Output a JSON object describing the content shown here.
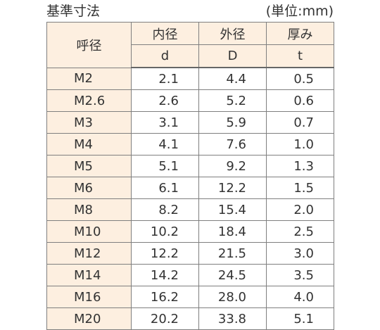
{
  "title": "基準寸法",
  "unit_note": "(単位:mm)",
  "headers": {
    "nominal": "呼径",
    "inner_label": "内径",
    "outer_label": "外径",
    "thickness_label": "厚み",
    "inner_symbol": "d",
    "outer_symbol": "D",
    "thickness_symbol": "t"
  },
  "rows": [
    {
      "size": "M2",
      "d": "2.1",
      "D": "4.4",
      "t": "0.5"
    },
    {
      "size": "M2.6",
      "d": "2.6",
      "D": "5.2",
      "t": "0.6"
    },
    {
      "size": "M3",
      "d": "3.1",
      "D": "5.9",
      "t": "0.7"
    },
    {
      "size": "M4",
      "d": "4.1",
      "D": "7.6",
      "t": "1.0"
    },
    {
      "size": "M5",
      "d": "5.1",
      "D": "9.2",
      "t": "1.3"
    },
    {
      "size": "M6",
      "d": "6.1",
      "D": "12.2",
      "t": "1.5"
    },
    {
      "size": "M8",
      "d": "8.2",
      "D": "15.4",
      "t": "2.0"
    },
    {
      "size": "M10",
      "d": "10.2",
      "D": "18.4",
      "t": "2.5"
    },
    {
      "size": "M12",
      "d": "12.2",
      "D": "21.5",
      "t": "3.0"
    },
    {
      "size": "M14",
      "d": "14.2",
      "D": "24.5",
      "t": "3.5"
    },
    {
      "size": "M16",
      "d": "16.2",
      "D": "28.0",
      "t": "4.0"
    },
    {
      "size": "M20",
      "d": "20.2",
      "D": "33.8",
      "t": "5.1"
    }
  ],
  "colors": {
    "header_bg": "#fdefe0",
    "border": "#7f7f7f",
    "text": "#333333"
  }
}
